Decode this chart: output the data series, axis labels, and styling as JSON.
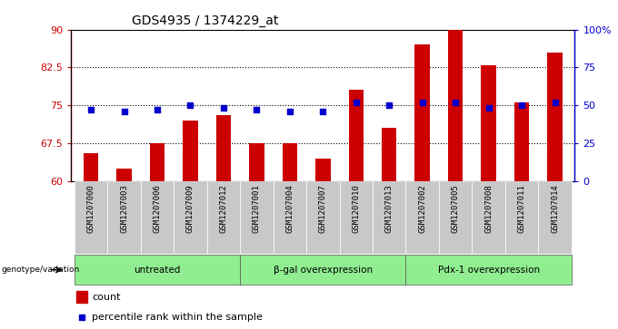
{
  "title": "GDS4935 / 1374229_at",
  "samples": [
    "GSM1207000",
    "GSM1207003",
    "GSM1207006",
    "GSM1207009",
    "GSM1207012",
    "GSM1207001",
    "GSM1207004",
    "GSM1207007",
    "GSM1207010",
    "GSM1207013",
    "GSM1207002",
    "GSM1207005",
    "GSM1207008",
    "GSM1207011",
    "GSM1207014"
  ],
  "counts": [
    65.5,
    62.5,
    67.5,
    72.0,
    73.0,
    67.5,
    67.5,
    64.5,
    78.0,
    70.5,
    87.0,
    92.5,
    83.0,
    75.5,
    85.5
  ],
  "percentile_ranks": [
    47,
    46,
    47,
    50,
    48,
    47,
    46,
    46,
    52,
    50,
    52,
    52,
    48,
    50,
    52
  ],
  "groups": [
    {
      "label": "untreated",
      "start": 0,
      "end": 5
    },
    {
      "label": "β-gal overexpression",
      "start": 5,
      "end": 10
    },
    {
      "label": "Pdx-1 overexpression",
      "start": 10,
      "end": 15
    }
  ],
  "ylim_left": [
    60,
    90
  ],
  "ylim_right": [
    0,
    100
  ],
  "yticks_left": [
    60,
    67.5,
    75,
    82.5,
    90
  ],
  "ytick_labels_left": [
    "60",
    "67.5",
    "75",
    "82.5",
    "90"
  ],
  "yticks_right": [
    0,
    25,
    50,
    75,
    100
  ],
  "ytick_labels_right": [
    "0",
    "25",
    "50",
    "75",
    "100%"
  ],
  "bar_color": "#cc0000",
  "dot_color": "#0000cc",
  "group_bg_color": "#90ee90",
  "sample_bg_color": "#c8c8c8",
  "plot_bg_color": "#ffffff",
  "grid_color": "#000000",
  "left_axis_color": "#cc0000",
  "right_axis_color": "#0000cc",
  "genotype_label": "genotype/variation",
  "legend_count": "count",
  "legend_percentile": "percentile rank within the sample"
}
